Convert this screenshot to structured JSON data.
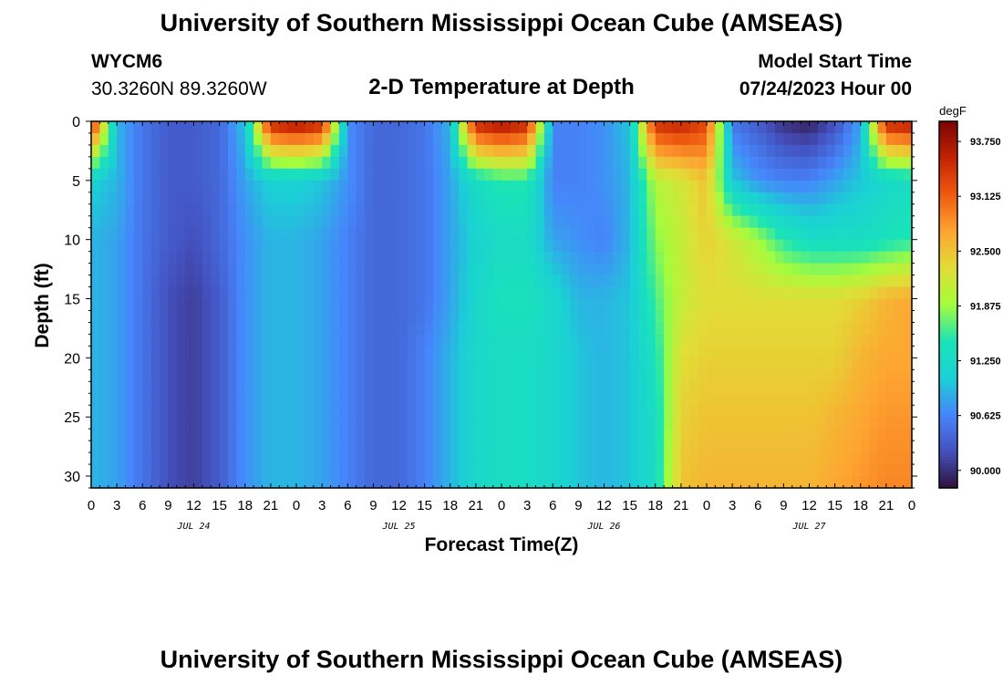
{
  "title": "University of Southern Mississippi Ocean Cube (AMSEAS)",
  "footer_title": "University of Southern Mississippi Ocean Cube (AMSEAS)",
  "station": {
    "name": "WYCM6",
    "coordinates": "30.3260N  89.3260W"
  },
  "model_start": {
    "label": "Model Start Time",
    "value": "07/24/2023 Hour 00"
  },
  "chart_data": {
    "type": "heatmap",
    "title": "2-D Temperature at Depth",
    "xlabel": "Forecast Time(Z)",
    "ylabel": "Depth (ft)",
    "colorbar_unit": "degF",
    "colorbar_ticks": [
      "93.750",
      "93.125",
      "92.500",
      "91.875",
      "91.250",
      "90.625",
      "90.000"
    ],
    "colorbar_tick_values": [
      93.75,
      93.125,
      92.5,
      91.875,
      91.25,
      90.625,
      90.0
    ],
    "vmin": 89.8,
    "vmax": 93.98,
    "y_ticks": [
      0,
      5,
      10,
      15,
      20,
      25,
      30
    ],
    "ylim": [
      0,
      31
    ],
    "xlim_hours": [
      0,
      96
    ],
    "x_tick_labels": [
      "0",
      "3",
      "6",
      "9",
      "12",
      "15",
      "18",
      "21",
      "0",
      "3",
      "6",
      "9",
      "12",
      "15",
      "18",
      "21",
      "0",
      "3",
      "6",
      "9",
      "12",
      "15",
      "18",
      "21",
      "0",
      "3",
      "6",
      "9",
      "12",
      "15",
      "18",
      "21",
      "0"
    ],
    "day_labels": [
      "JUL 24",
      "JUL 25",
      "JUL 26",
      "JUL 27"
    ],
    "depths_ft": [
      0,
      5,
      10,
      15,
      20,
      25,
      31
    ],
    "times_hours": [
      0,
      3,
      6,
      9,
      12,
      15,
      18,
      21,
      24,
      27,
      30,
      33,
      36,
      39,
      42,
      45,
      48,
      51,
      54,
      57,
      60,
      63,
      66,
      69,
      72,
      75,
      78,
      81,
      84,
      87,
      90,
      93,
      96
    ],
    "temperature_degF": [
      [
        93.6,
        90.9,
        90.5,
        90.3,
        90.3,
        90.4,
        91.0,
        93.6,
        93.8,
        93.6,
        90.7,
        90.4,
        90.4,
        90.5,
        90.9,
        93.6,
        93.8,
        93.6,
        90.6,
        90.6,
        90.7,
        91.0,
        93.5,
        93.6,
        93.3,
        90.5,
        90.3,
        90.0,
        89.9,
        90.2,
        90.8,
        93.6,
        93.7
      ],
      [
        91.1,
        90.9,
        90.5,
        90.3,
        90.3,
        90.4,
        90.8,
        91.1,
        91.1,
        91.0,
        90.7,
        90.4,
        90.4,
        90.5,
        90.8,
        91.3,
        91.5,
        91.5,
        90.6,
        90.6,
        90.7,
        90.9,
        92.0,
        92.2,
        92.5,
        91.0,
        90.7,
        90.6,
        90.6,
        90.8,
        91.0,
        91.2,
        91.3
      ],
      [
        90.9,
        90.8,
        90.5,
        90.3,
        90.2,
        90.4,
        90.7,
        90.9,
        90.9,
        90.8,
        90.6,
        90.4,
        90.4,
        90.5,
        90.8,
        91.1,
        91.3,
        91.3,
        90.8,
        90.7,
        90.6,
        90.9,
        91.8,
        92.1,
        92.4,
        92.2,
        91.9,
        91.5,
        91.3,
        91.3,
        91.3,
        91.4,
        91.5
      ],
      [
        90.9,
        90.8,
        90.5,
        90.2,
        90.1,
        90.3,
        90.7,
        90.9,
        90.9,
        90.8,
        90.6,
        90.4,
        90.4,
        90.5,
        90.8,
        91.2,
        91.4,
        91.4,
        91.2,
        90.9,
        90.9,
        91.0,
        91.6,
        92.1,
        92.3,
        92.3,
        92.3,
        92.3,
        92.3,
        92.3,
        92.4,
        92.6,
        92.7
      ],
      [
        90.9,
        90.8,
        90.5,
        90.2,
        90.1,
        90.3,
        90.7,
        90.9,
        90.9,
        90.8,
        90.6,
        90.4,
        90.4,
        90.6,
        90.9,
        91.2,
        91.3,
        91.3,
        91.2,
        91.0,
        90.9,
        91.0,
        91.4,
        92.3,
        92.4,
        92.4,
        92.4,
        92.4,
        92.4,
        92.4,
        92.6,
        92.7,
        92.7
      ],
      [
        90.9,
        90.8,
        90.5,
        90.2,
        90.1,
        90.3,
        90.7,
        90.9,
        90.9,
        90.8,
        90.6,
        90.4,
        90.4,
        90.6,
        90.9,
        91.2,
        91.3,
        91.3,
        91.2,
        91.0,
        90.9,
        91.0,
        91.3,
        92.4,
        92.5,
        92.5,
        92.5,
        92.5,
        92.5,
        92.6,
        92.7,
        92.8,
        92.8
      ],
      [
        90.9,
        90.8,
        90.5,
        90.2,
        90.1,
        90.3,
        90.7,
        90.9,
        90.9,
        90.8,
        90.6,
        90.4,
        90.4,
        90.6,
        90.9,
        91.2,
        91.3,
        91.3,
        91.2,
        91.0,
        90.9,
        91.0,
        91.3,
        92.5,
        92.6,
        92.6,
        92.6,
        92.6,
        92.6,
        92.7,
        92.8,
        92.9,
        92.9
      ]
    ]
  }
}
